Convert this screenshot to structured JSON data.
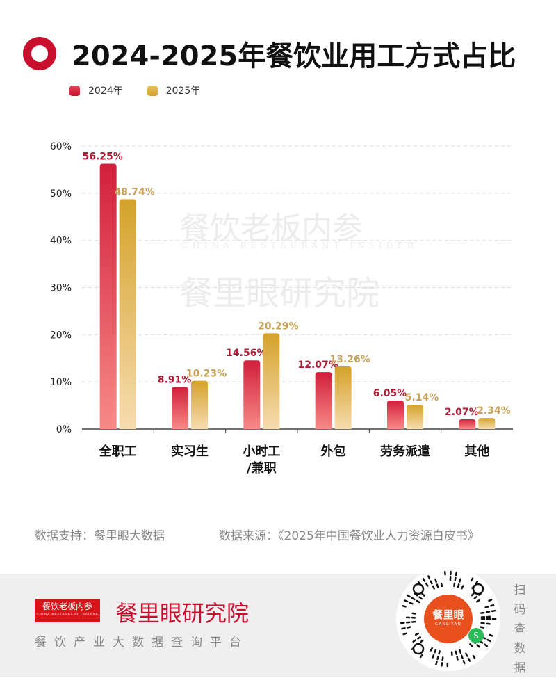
{
  "title": "2024-2025年餐饮业用工方式占比",
  "watermark": {
    "line1": "餐饮老板内参",
    "line2": "CHINA RESTAURANT INSIDER",
    "line3": "餐里眼研究院"
  },
  "chart_data": {
    "type": "bar",
    "title": "2024-2025年餐饮业用工方式占比",
    "categories": [
      "全职工",
      "实习生",
      "小时工\n/兼职",
      "外包",
      "劳务派遣",
      "其他"
    ],
    "series": [
      {
        "name": "2024年",
        "values": [
          56.25,
          8.91,
          14.56,
          12.07,
          6.05,
          2.07
        ],
        "color": "#d7263d",
        "label_color": "#b01c35"
      },
      {
        "name": "2025年",
        "values": [
          48.74,
          10.23,
          20.29,
          13.26,
          5.14,
          2.34
        ],
        "color": "#d4a22a",
        "label_color": "#c9a25a"
      }
    ],
    "yticks": [
      "0%",
      "10%",
      "20%",
      "30%",
      "40%",
      "50%",
      "60%"
    ],
    "ylim": [
      0,
      60
    ],
    "grid": true,
    "legend": "top-left"
  },
  "sources": {
    "support": "数据支持：餐里眼大数据",
    "source": "数据来源：《2025年中国餐饮业人力资源白皮书》"
  },
  "footer": {
    "logo_text": "餐饮老板内参",
    "logo_sub": "CHINA RESTAURANT INSIDER",
    "brand": "餐里眼研究院",
    "tagline": "餐饮产业大数据查询平台",
    "qr_badge": "餐里眼",
    "qr_badge_en": "CANLIYAN",
    "scan": "扫码查数据"
  }
}
